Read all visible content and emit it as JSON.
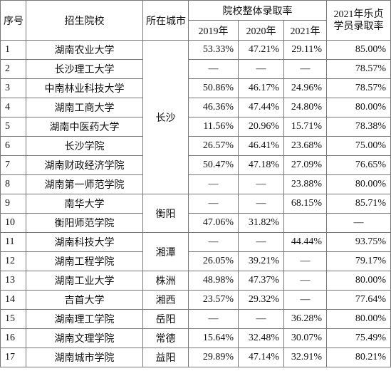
{
  "header": {
    "index": "序号",
    "school": "招生院校",
    "city": "所在城市",
    "group": "院校整体录取率",
    "years": [
      "2019年",
      "2020年",
      "2021年"
    ],
    "last": "2021年乐贞学员录取率"
  },
  "rows": [
    {
      "no": "1",
      "school": "湖南农业大学",
      "city": "长沙",
      "values": [
        "53.33%",
        "47.21%",
        "29.11%",
        "85.00%"
      ]
    },
    {
      "no": "2",
      "school": "长沙理工大学",
      "city": null,
      "values": [
        "—",
        "—",
        "—",
        "78.57%"
      ]
    },
    {
      "no": "3",
      "school": "中南林业科技大学",
      "city": null,
      "values": [
        "50.86%",
        "46.17%",
        "24.96%",
        "78.57%"
      ]
    },
    {
      "no": "4",
      "school": "湖南工商大学",
      "city": null,
      "values": [
        "46.36%",
        "47.44%",
        "24.80%",
        "80.00%"
      ]
    },
    {
      "no": "5",
      "school": "湖南中医药大学",
      "city": null,
      "values": [
        "11.56%",
        "20.96%",
        "15.71%",
        "78.38%"
      ]
    },
    {
      "no": "6",
      "school": "长沙学院",
      "city": null,
      "values": [
        "26.57%",
        "46.41%",
        "23.68%",
        "75.00%"
      ]
    },
    {
      "no": "7",
      "school": "湖南财政经济学院",
      "city": null,
      "values": [
        "50.47%",
        "47.18%",
        "27.09%",
        "76.65%"
      ]
    },
    {
      "no": "8",
      "school": "湖南第一师范学院",
      "city": null,
      "values": [
        "—",
        "—",
        "23.88%",
        "80.00%"
      ]
    },
    {
      "no": "9",
      "school": "南华大学",
      "city": "衡阳",
      "values": [
        "—",
        "—",
        "68.15%",
        "85.71%"
      ]
    },
    {
      "no": "10",
      "school": "衡阳师范学院",
      "city": null,
      "values": [
        "47.06%",
        "31.82%",
        null,
        "—"
      ]
    },
    {
      "no": "11",
      "school": "湖南科技大学",
      "city": "湘潭",
      "values": [
        "—",
        "—",
        "44.44%",
        "93.75%"
      ]
    },
    {
      "no": "12",
      "school": "湖南工程学院",
      "city": null,
      "values": [
        "26.05%",
        "39.21%",
        "—",
        "79.17%"
      ]
    },
    {
      "no": "13",
      "school": "湖南工业大学",
      "city": "株洲",
      "values": [
        "48.98%",
        "47.37%",
        "—",
        "80.00%"
      ]
    },
    {
      "no": "14",
      "school": "吉首大学",
      "city": "湘西",
      "values": [
        "23.57%",
        "29.32%",
        "—",
        "77.64%"
      ]
    },
    {
      "no": "15",
      "school": "湖南理工学院",
      "city": "岳阳",
      "values": [
        "—",
        "—",
        "36.28%",
        "80.00%"
      ]
    },
    {
      "no": "16",
      "school": "湖南文理学院",
      "city": "常德",
      "values": [
        "15.64%",
        "32.48%",
        "30.07%",
        "75.49%"
      ]
    },
    {
      "no": "17",
      "school": "湖南城市学院",
      "city": "益阳",
      "values": [
        "29.89%",
        "47.14%",
        "32.91%",
        "80.21%"
      ]
    }
  ]
}
